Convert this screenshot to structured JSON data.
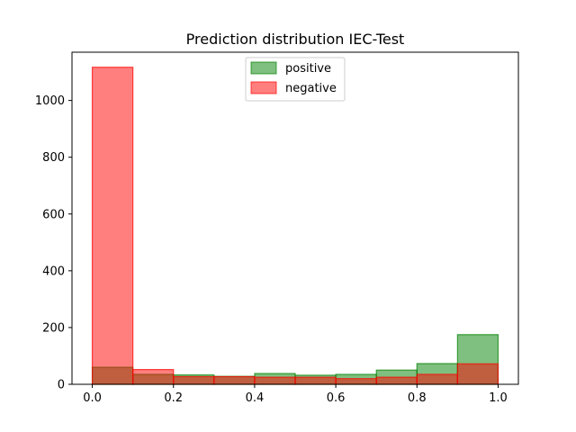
{
  "chart_data": {
    "type": "bar",
    "title": "Prediction distribution IEC-Test",
    "xlabel": "",
    "ylabel": "",
    "bin_edges": [
      0.0,
      0.1,
      0.2,
      0.3,
      0.4,
      0.5,
      0.6,
      0.7,
      0.8,
      0.9,
      1.0
    ],
    "xlim": [
      -0.05,
      1.05
    ],
    "ylim": [
      0,
      1170
    ],
    "x_ticks": [
      "0.0",
      "0.2",
      "0.4",
      "0.6",
      "0.8",
      "1.0"
    ],
    "y_ticks": [
      "0",
      "200",
      "400",
      "600",
      "800",
      "1000"
    ],
    "grid": false,
    "legend_position": "upper center",
    "series": [
      {
        "name": "positive",
        "color": "#008000",
        "opacity": 0.5,
        "values": [
          60,
          35,
          33,
          28,
          38,
          32,
          35,
          50,
          73,
          175
        ]
      },
      {
        "name": "negative",
        "color": "#ff0000",
        "opacity": 0.5,
        "values": [
          1117,
          52,
          27,
          27,
          25,
          25,
          20,
          25,
          35,
          72
        ]
      }
    ]
  }
}
